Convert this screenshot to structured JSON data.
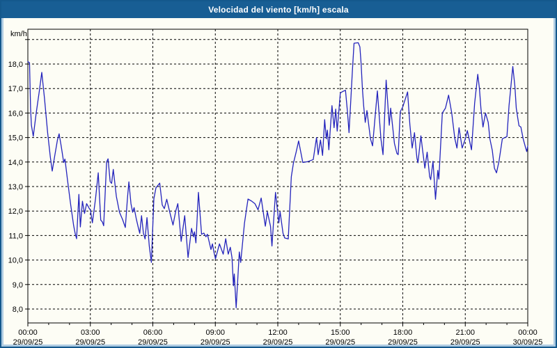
{
  "window": {
    "title": "Velocidad del viento [km/h] escala"
  },
  "colors": {
    "titlebar_bg": "#185E94",
    "titlebar_text": "#ffffff",
    "frame_light": "#AECBE2",
    "frame_dark": "#14588C",
    "canvas_bg": "#FDFDF5",
    "line": "#2323BC",
    "grid": "#000000",
    "text": "#000000"
  },
  "chart_data": {
    "type": "line",
    "title": "Velocidad del viento [km/h] escala",
    "y_unit_label": "km/h",
    "xlabel": "",
    "ylabel": "km/h",
    "grid": true,
    "legend": "none",
    "ylim": [
      7.4,
      19.45
    ],
    "xlim_hours": [
      0,
      24
    ],
    "y_ticks": [
      {
        "value": 8,
        "label": "8,0"
      },
      {
        "value": 9,
        "label": "9,0"
      },
      {
        "value": 10,
        "label": "10,0"
      },
      {
        "value": 11,
        "label": "11,0"
      },
      {
        "value": 12,
        "label": "12,0"
      },
      {
        "value": 13,
        "label": "13,0"
      },
      {
        "value": 14,
        "label": "14,0"
      },
      {
        "value": 15,
        "label": "15,0"
      },
      {
        "value": 16,
        "label": "16,0"
      },
      {
        "value": 17,
        "label": "17,0"
      },
      {
        "value": 18,
        "label": "18,0"
      },
      {
        "value": 19,
        "label": ""
      }
    ],
    "x_ticks": [
      {
        "hour": 0,
        "time": "00:00",
        "date": "29/09/25"
      },
      {
        "hour": 3,
        "time": "03:00",
        "date": "29/09/25"
      },
      {
        "hour": 6,
        "time": "06:00",
        "date": "29/09/25"
      },
      {
        "hour": 9,
        "time": "09:00",
        "date": "29/09/25"
      },
      {
        "hour": 12,
        "time": "12:00",
        "date": "29/09/25"
      },
      {
        "hour": 15,
        "time": "15:00",
        "date": "29/09/25"
      },
      {
        "hour": 18,
        "time": "18:00",
        "date": "29/09/25"
      },
      {
        "hour": 21,
        "time": "21:00",
        "date": "29/09/25"
      },
      {
        "hour": 24,
        "time": "00:00",
        "date": "30/09/25"
      }
    ],
    "x_minor_tick_every_hours": 1,
    "series": [
      {
        "name": "Velocidad del viento",
        "color": "#2323BC",
        "points": [
          [
            0.0,
            18.1
          ],
          [
            0.08,
            18.05
          ],
          [
            0.13,
            16.2
          ],
          [
            0.17,
            15.5
          ],
          [
            0.26,
            15.05
          ],
          [
            0.4,
            16.0
          ],
          [
            0.55,
            16.9
          ],
          [
            0.67,
            17.66
          ],
          [
            0.8,
            16.6
          ],
          [
            0.95,
            15.2
          ],
          [
            1.08,
            14.2
          ],
          [
            1.17,
            13.63
          ],
          [
            1.3,
            14.3
          ],
          [
            1.42,
            14.9
          ],
          [
            1.5,
            15.15
          ],
          [
            1.6,
            14.65
          ],
          [
            1.72,
            13.98
          ],
          [
            1.78,
            14.12
          ],
          [
            1.9,
            13.3
          ],
          [
            2.05,
            12.3
          ],
          [
            2.2,
            11.4
          ],
          [
            2.28,
            11.05
          ],
          [
            2.34,
            10.87
          ],
          [
            2.45,
            12.68
          ],
          [
            2.52,
            11.35
          ],
          [
            2.62,
            12.4
          ],
          [
            2.72,
            11.9
          ],
          [
            2.82,
            12.3
          ],
          [
            2.95,
            12.1
          ],
          [
            3.0,
            12.05
          ],
          [
            3.1,
            11.52
          ],
          [
            3.25,
            12.5
          ],
          [
            3.38,
            13.56
          ],
          [
            3.5,
            11.63
          ],
          [
            3.58,
            11.55
          ],
          [
            3.64,
            11.4
          ],
          [
            3.78,
            14.0
          ],
          [
            3.85,
            14.13
          ],
          [
            3.95,
            13.2
          ],
          [
            4.02,
            13.13
          ],
          [
            4.1,
            13.7
          ],
          [
            4.25,
            12.6
          ],
          [
            4.4,
            11.95
          ],
          [
            4.55,
            11.65
          ],
          [
            4.68,
            11.33
          ],
          [
            4.78,
            12.5
          ],
          [
            4.85,
            13.19
          ],
          [
            4.95,
            12.3
          ],
          [
            5.03,
            11.95
          ],
          [
            5.1,
            12.14
          ],
          [
            5.2,
            11.7
          ],
          [
            5.3,
            11.33
          ],
          [
            5.37,
            11.09
          ],
          [
            5.46,
            11.81
          ],
          [
            5.55,
            11.09
          ],
          [
            5.63,
            10.86
          ],
          [
            5.72,
            11.73
          ],
          [
            5.83,
            10.57
          ],
          [
            5.93,
            9.9
          ],
          [
            6.05,
            12.5
          ],
          [
            6.15,
            12.95
          ],
          [
            6.33,
            13.14
          ],
          [
            6.45,
            12.25
          ],
          [
            6.55,
            12.1
          ],
          [
            6.67,
            12.48
          ],
          [
            6.8,
            12.0
          ],
          [
            6.97,
            11.43
          ],
          [
            7.1,
            12.0
          ],
          [
            7.2,
            12.3
          ],
          [
            7.36,
            10.76
          ],
          [
            7.53,
            11.81
          ],
          [
            7.69,
            10.1
          ],
          [
            7.86,
            11.29
          ],
          [
            7.95,
            10.95
          ],
          [
            8.0,
            11.15
          ],
          [
            8.07,
            10.7
          ],
          [
            8.19,
            12.76
          ],
          [
            8.34,
            11.05
          ],
          [
            8.45,
            11.1
          ],
          [
            8.55,
            10.95
          ],
          [
            8.62,
            11.05
          ],
          [
            8.79,
            10.43
          ],
          [
            8.86,
            10.66
          ],
          [
            8.94,
            10.29
          ],
          [
            9.01,
            10.05
          ],
          [
            9.2,
            10.66
          ],
          [
            9.38,
            10.24
          ],
          [
            9.5,
            10.87
          ],
          [
            9.62,
            10.24
          ],
          [
            9.72,
            10.52
          ],
          [
            9.8,
            10.1
          ],
          [
            9.87,
            8.95
          ],
          [
            9.91,
            9.43
          ],
          [
            10.0,
            8.05
          ],
          [
            10.15,
            10.33
          ],
          [
            10.22,
            9.9
          ],
          [
            10.4,
            11.5
          ],
          [
            10.57,
            12.49
          ],
          [
            10.75,
            12.4
          ],
          [
            10.9,
            12.3
          ],
          [
            11.05,
            12.05
          ],
          [
            11.2,
            12.53
          ],
          [
            11.4,
            11.38
          ],
          [
            11.5,
            11.97
          ],
          [
            11.65,
            11.38
          ],
          [
            11.72,
            10.57
          ],
          [
            11.89,
            12.76
          ],
          [
            12.0,
            11.9
          ],
          [
            12.05,
            11.52
          ],
          [
            12.11,
            11.97
          ],
          [
            12.25,
            11.09
          ],
          [
            12.33,
            10.9
          ],
          [
            12.5,
            10.86
          ],
          [
            12.65,
            13.4
          ],
          [
            12.75,
            13.95
          ],
          [
            12.88,
            14.4
          ],
          [
            13.0,
            14.86
          ],
          [
            13.2,
            13.98
          ],
          [
            13.45,
            14.02
          ],
          [
            13.7,
            14.1
          ],
          [
            13.86,
            15.0
          ],
          [
            13.94,
            14.3
          ],
          [
            14.05,
            14.9
          ],
          [
            14.15,
            14.27
          ],
          [
            14.25,
            15.73
          ],
          [
            14.33,
            14.95
          ],
          [
            14.38,
            15.3
          ],
          [
            14.45,
            14.5
          ],
          [
            14.6,
            16.3
          ],
          [
            14.7,
            15.4
          ],
          [
            14.78,
            16.16
          ],
          [
            14.85,
            15.26
          ],
          [
            15.0,
            16.82
          ],
          [
            15.12,
            16.88
          ],
          [
            15.25,
            16.93
          ],
          [
            15.35,
            16.0
          ],
          [
            15.42,
            15.2
          ],
          [
            15.52,
            16.76
          ],
          [
            15.58,
            17.71
          ],
          [
            15.66,
            18.85
          ],
          [
            15.86,
            18.87
          ],
          [
            15.94,
            18.7
          ],
          [
            16.0,
            18.0
          ],
          [
            16.06,
            17.0
          ],
          [
            16.12,
            16.3
          ],
          [
            16.2,
            15.62
          ],
          [
            16.28,
            16.1
          ],
          [
            16.45,
            14.95
          ],
          [
            16.55,
            14.66
          ],
          [
            16.78,
            16.9
          ],
          [
            16.95,
            14.95
          ],
          [
            17.05,
            14.3
          ],
          [
            17.2,
            17.34
          ],
          [
            17.35,
            15.5
          ],
          [
            17.42,
            16.2
          ],
          [
            17.6,
            14.76
          ],
          [
            17.72,
            14.35
          ],
          [
            17.78,
            14.3
          ],
          [
            17.88,
            16.05
          ],
          [
            18.0,
            16.25
          ],
          [
            18.23,
            16.86
          ],
          [
            18.34,
            15.52
          ],
          [
            18.45,
            14.57
          ],
          [
            18.56,
            15.2
          ],
          [
            18.68,
            14.16
          ],
          [
            18.73,
            13.97
          ],
          [
            18.87,
            15.07
          ],
          [
            18.95,
            14.5
          ],
          [
            19.06,
            13.75
          ],
          [
            19.17,
            14.4
          ],
          [
            19.29,
            13.4
          ],
          [
            19.34,
            13.28
          ],
          [
            19.45,
            14.03
          ],
          [
            19.57,
            12.48
          ],
          [
            19.68,
            13.66
          ],
          [
            19.73,
            13.3
          ],
          [
            19.9,
            16.0
          ],
          [
            20.05,
            16.2
          ],
          [
            20.2,
            16.73
          ],
          [
            20.35,
            16.0
          ],
          [
            20.5,
            14.95
          ],
          [
            20.6,
            14.57
          ],
          [
            20.7,
            15.4
          ],
          [
            20.85,
            14.57
          ],
          [
            21.0,
            14.95
          ],
          [
            21.1,
            15.28
          ],
          [
            21.3,
            14.5
          ],
          [
            21.45,
            16.4
          ],
          [
            21.6,
            17.58
          ],
          [
            21.68,
            17.0
          ],
          [
            21.75,
            16.2
          ],
          [
            21.85,
            15.43
          ],
          [
            21.97,
            16.0
          ],
          [
            22.1,
            15.62
          ],
          [
            22.18,
            14.95
          ],
          [
            22.3,
            14.47
          ],
          [
            22.4,
            13.75
          ],
          [
            22.5,
            13.56
          ],
          [
            22.62,
            14.03
          ],
          [
            22.78,
            14.95
          ],
          [
            23.0,
            15.04
          ],
          [
            23.1,
            16.3
          ],
          [
            23.18,
            17.0
          ],
          [
            23.28,
            17.9
          ],
          [
            23.38,
            17.1
          ],
          [
            23.45,
            16.2
          ],
          [
            23.52,
            15.8
          ],
          [
            23.58,
            15.48
          ],
          [
            23.67,
            15.43
          ],
          [
            23.78,
            14.95
          ],
          [
            23.9,
            14.57
          ],
          [
            23.95,
            14.43
          ],
          [
            24.0,
            14.66
          ]
        ]
      }
    ]
  }
}
